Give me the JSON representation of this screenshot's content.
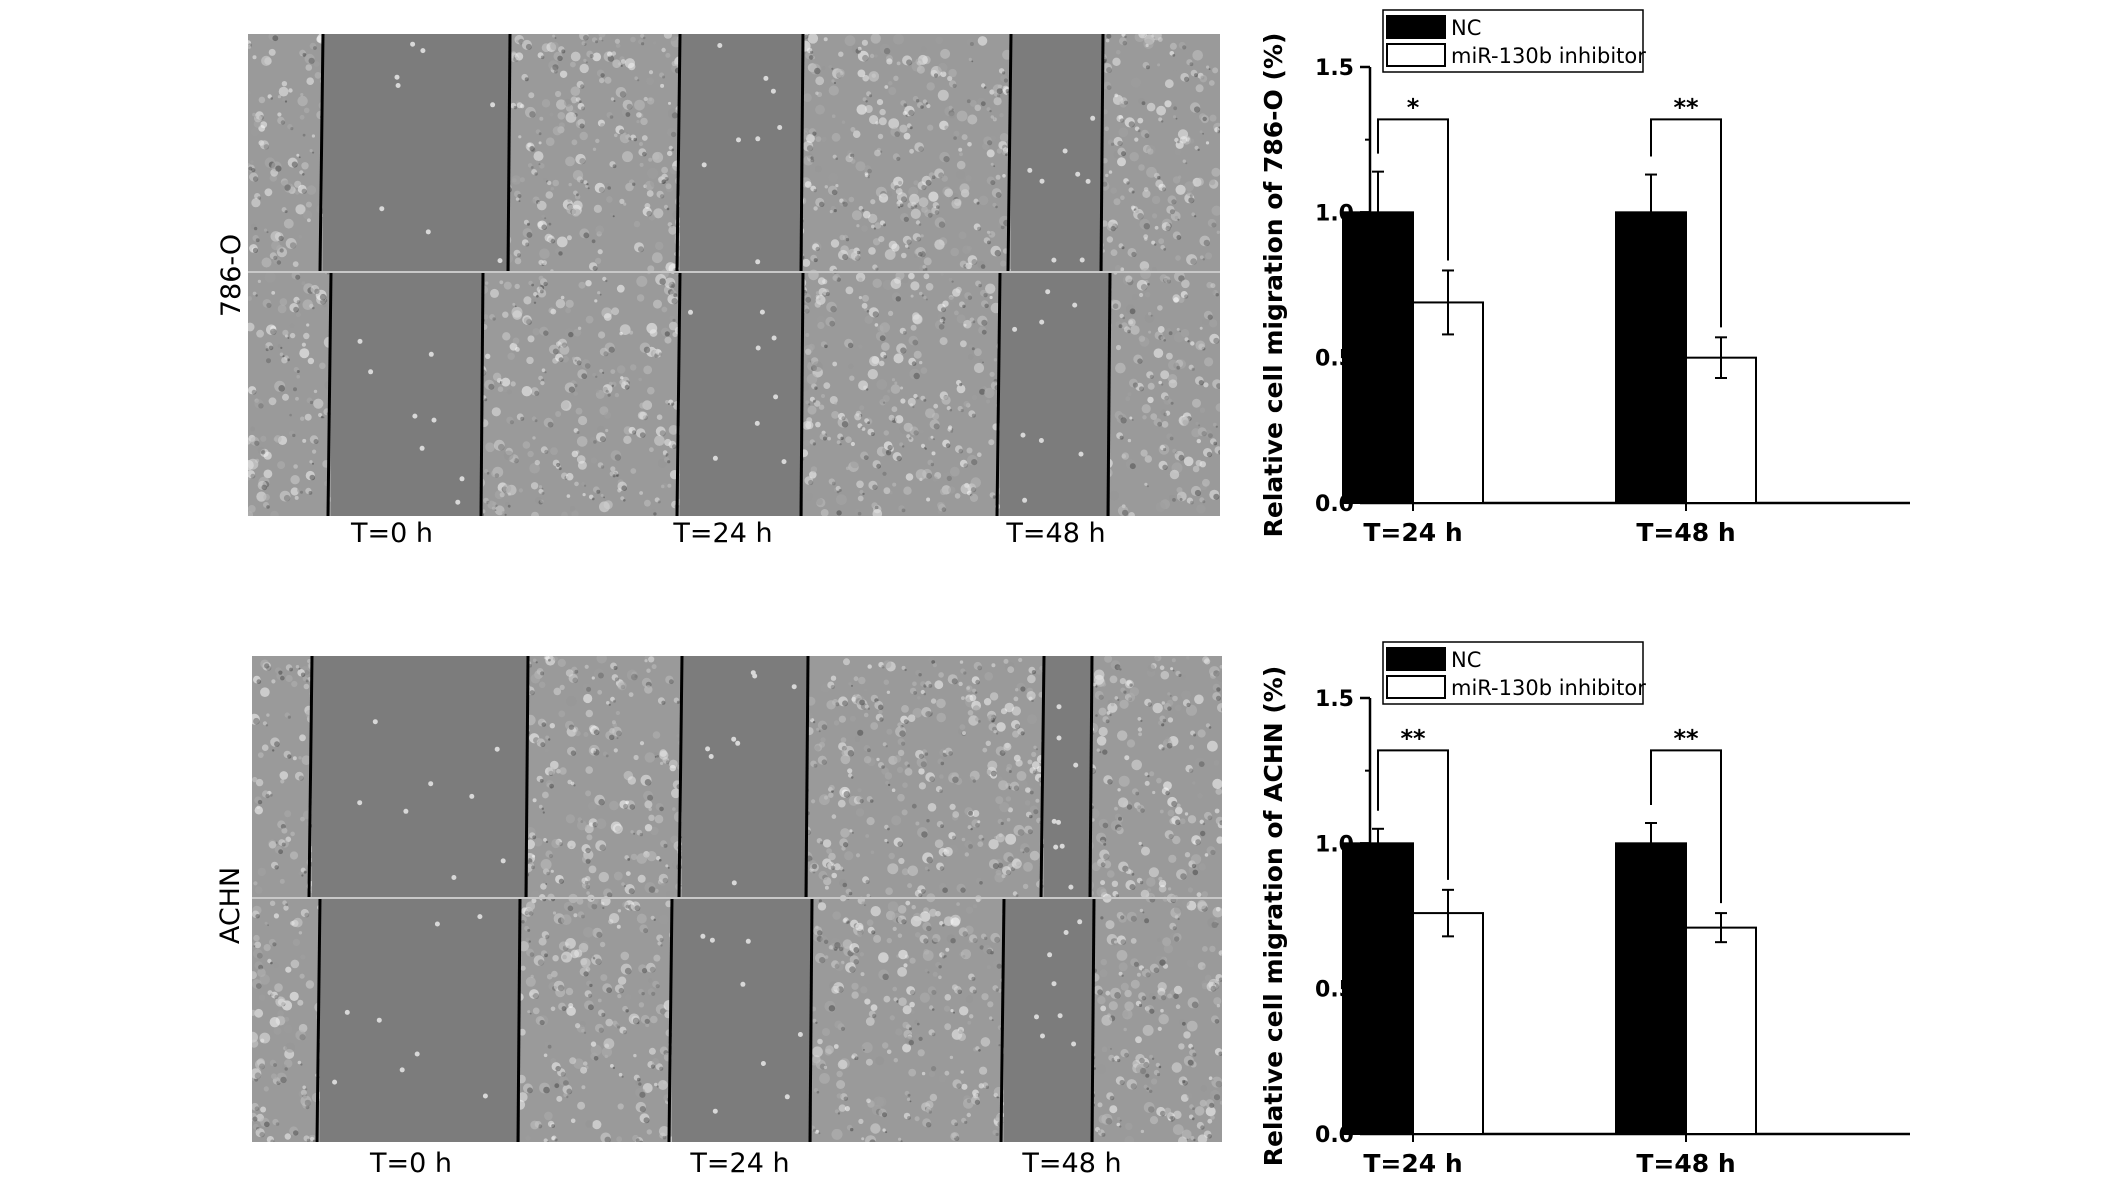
{
  "figure": {
    "rows": [
      {
        "cell_line": "786-O",
        "time_labels": [
          "T=0 h",
          "T=24 h",
          "T=48 h"
        ]
      },
      {
        "cell_line": "ACHN",
        "time_labels": [
          "T=0 h",
          "T=24 h",
          "T=48 h"
        ]
      }
    ]
  },
  "chart_data": [
    {
      "type": "bar",
      "title": "",
      "xlabel": "",
      "ylabel": "Relative cell migration of 786-O (%)",
      "ylim": [
        0,
        1.5
      ],
      "yticks": [
        "0.0",
        "0.5",
        "1.0",
        "1.5"
      ],
      "categories": [
        "T=24 h",
        "T=48 h"
      ],
      "series": [
        {
          "name": "NC",
          "values": [
            1.0,
            1.0
          ],
          "errors": [
            0.14,
            0.13
          ],
          "color": "#000000"
        },
        {
          "name": "miR-130b inhibitor",
          "values": [
            0.69,
            0.5
          ],
          "errors": [
            0.11,
            0.07
          ],
          "color": "#ffffff"
        }
      ],
      "significance": [
        "*",
        "**"
      ],
      "legend": "top-left"
    },
    {
      "type": "bar",
      "title": "",
      "xlabel": "",
      "ylabel": "Relative cell migration of ACHN (%)",
      "ylim": [
        0,
        1.5
      ],
      "yticks": [
        "0.0",
        "0.5",
        "1.0",
        "1.5"
      ],
      "categories": [
        "T=24 h",
        "T=48 h"
      ],
      "series": [
        {
          "name": "NC",
          "values": [
            1.0,
            1.0
          ],
          "errors": [
            0.05,
            0.07
          ],
          "color": "#000000"
        },
        {
          "name": "miR-130b inhibitor",
          "values": [
            0.76,
            0.71
          ],
          "errors": [
            0.08,
            0.05
          ],
          "color": "#ffffff"
        }
      ],
      "significance": [
        "**",
        "**"
      ],
      "legend": "top-left"
    }
  ]
}
